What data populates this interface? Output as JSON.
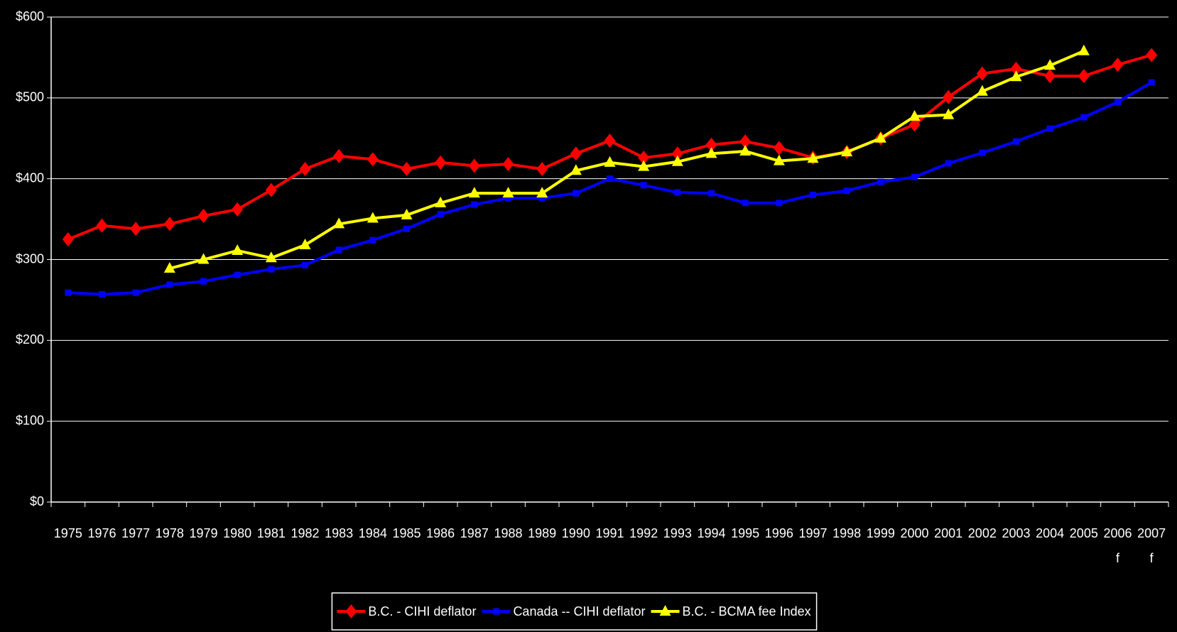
{
  "chart_data": {
    "type": "line",
    "categories": [
      "1975",
      "1976",
      "1977",
      "1978",
      "1979",
      "1980",
      "1981",
      "1982",
      "1983",
      "1984",
      "1985",
      "1986",
      "1987",
      "1988",
      "1989",
      "1990",
      "1991",
      "1992",
      "1993",
      "1994",
      "1995",
      "1996",
      "1997",
      "1998",
      "1999",
      "2000",
      "2001",
      "2002",
      "2003",
      "2004",
      "2005",
      "2006 f",
      "2007 f"
    ],
    "series": [
      {
        "name": "B.C. - CIHI deflator",
        "color": "#ff0000",
        "marker": "diamond",
        "values": [
          325,
          342,
          338,
          344,
          354,
          362,
          386,
          412,
          428,
          424,
          412,
          420,
          416,
          418,
          412,
          431,
          447,
          426,
          431,
          442,
          446,
          438,
          426,
          433,
          450,
          467,
          501,
          530,
          536,
          527,
          527,
          541,
          553
        ]
      },
      {
        "name": "Canada -- CIHI deflator",
        "color": "#0000ff",
        "marker": "square",
        "values": [
          259,
          257,
          259,
          269,
          273,
          281,
          288,
          293,
          312,
          324,
          338,
          356,
          368,
          376,
          376,
          382,
          400,
          392,
          383,
          382,
          370,
          370,
          380,
          385,
          396,
          402,
          419,
          432,
          446,
          462,
          476,
          495,
          519
        ]
      },
      {
        "name": "B.C. - BCMA fee Index",
        "color": "#ffff00",
        "marker": "triangle",
        "values": [
          null,
          null,
          null,
          289,
          300,
          311,
          302,
          318,
          344,
          351,
          355,
          370,
          382,
          382,
          382,
          410,
          420,
          415,
          421,
          431,
          434,
          422,
          425,
          433,
          450,
          477,
          479,
          508,
          526,
          540,
          558,
          null,
          null
        ]
      }
    ],
    "ylim": [
      0,
      600
    ],
    "yticks": [
      {
        "value": 0,
        "label": "$0"
      },
      {
        "value": 100,
        "label": "$100"
      },
      {
        "value": 200,
        "label": "$200"
      },
      {
        "value": 300,
        "label": "$300"
      },
      {
        "value": 400,
        "label": "$400"
      },
      {
        "value": 500,
        "label": "$500"
      },
      {
        "value": 600,
        "label": "$600"
      }
    ],
    "grid": true,
    "legend": "bottom"
  }
}
